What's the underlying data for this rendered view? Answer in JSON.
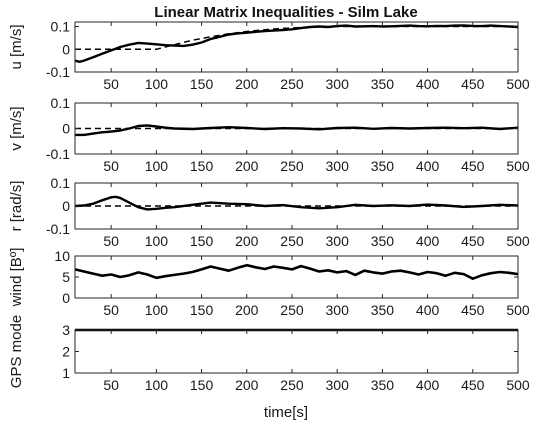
{
  "chart_data": {
    "type": "line",
    "title": "Linear Matrix Inequalities - Silm Lake",
    "xlabel": "time[s]",
    "x_tick_labels": [
      "50",
      "100",
      "150",
      "200",
      "250",
      "300",
      "350",
      "400",
      "450",
      "500"
    ],
    "colors": {
      "measured": "#000000",
      "reference": "#000000",
      "axes": "#262626"
    },
    "panels": [
      {
        "ylabel": "u [m/s]",
        "xlim": [
          10,
          500
        ],
        "ylim": [
          -0.1,
          0.12
        ],
        "yticks": [
          -0.1,
          0,
          0.1
        ],
        "ytick_labels": [
          "-0.1",
          "0",
          "0.1"
        ],
        "grid": false,
        "series": [
          {
            "style": "dashed",
            "x": [
              10,
              100,
              120,
              140,
              160,
              180,
              200,
              220,
              240,
              260,
              280,
              300,
              320,
              340,
              360,
              380,
              400,
              420,
              440,
              460,
              480,
              500
            ],
            "y": [
              0,
              0,
              0.02,
              0.04,
              0.055,
              0.068,
              0.078,
              0.086,
              0.092,
              0.096,
              0.099,
              0.1,
              0.1,
              0.1,
              0.1,
              0.1,
              0.1,
              0.1,
              0.1,
              0.1,
              0.1,
              0.1
            ]
          },
          {
            "style": "solid",
            "x": [
              10,
              15,
              20,
              30,
              40,
              50,
              60,
              70,
              80,
              90,
              100,
              110,
              120,
              130,
              140,
              150,
              160,
              170,
              180,
              190,
              200,
              210,
              220,
              230,
              240,
              250,
              260,
              270,
              280,
              290,
              300,
              310,
              320,
              330,
              340,
              350,
              360,
              370,
              380,
              390,
              400,
              410,
              420,
              430,
              440,
              450,
              460,
              470,
              480,
              490,
              500
            ],
            "y": [
              -0.05,
              -0.055,
              -0.05,
              -0.035,
              -0.02,
              -0.005,
              0.01,
              0.02,
              0.028,
              0.025,
              0.022,
              0.018,
              0.016,
              0.015,
              0.02,
              0.03,
              0.045,
              0.055,
              0.065,
              0.07,
              0.073,
              0.077,
              0.08,
              0.082,
              0.085,
              0.088,
              0.093,
              0.098,
              0.1,
              0.098,
              0.102,
              0.104,
              0.1,
              0.101,
              0.102,
              0.1,
              0.101,
              0.103,
              0.104,
              0.102,
              0.101,
              0.103,
              0.102,
              0.104,
              0.105,
              0.103,
              0.102,
              0.104,
              0.102,
              0.1,
              0.098
            ]
          }
        ]
      },
      {
        "ylabel": "v [m/s]",
        "xlim": [
          10,
          500
        ],
        "ylim": [
          -0.1,
          0.1
        ],
        "yticks": [
          -0.1,
          0,
          0.1
        ],
        "ytick_labels": [
          "-0.1",
          "0",
          "0.1"
        ],
        "grid": false,
        "series": [
          {
            "style": "dashed",
            "x": [
              10,
              500
            ],
            "y": [
              0,
              0
            ]
          },
          {
            "style": "solid",
            "x": [
              10,
              20,
              30,
              40,
              50,
              60,
              70,
              80,
              90,
              100,
              110,
              120,
              140,
              160,
              180,
              200,
              220,
              240,
              260,
              280,
              300,
              320,
              340,
              360,
              380,
              400,
              420,
              440,
              460,
              480,
              500
            ],
            "y": [
              -0.025,
              -0.025,
              -0.02,
              -0.015,
              -0.012,
              -0.008,
              0,
              0.01,
              0.012,
              0.008,
              0.003,
              0,
              -0.002,
              0.002,
              0.005,
              0.002,
              -0.002,
              0.001,
              0,
              -0.003,
              0.002,
              0.003,
              -0.001,
              0.002,
              0,
              0.002,
              0.003,
              0.001,
              0.003,
              -0.002,
              0.003
            ]
          }
        ]
      },
      {
        "ylabel": "r [rad/s]",
        "xlim": [
          10,
          500
        ],
        "ylim": [
          -0.1,
          0.1
        ],
        "yticks": [
          -0.1,
          0,
          0.1
        ],
        "ytick_labels": [
          "-0.1",
          "0",
          "0.1"
        ],
        "grid": false,
        "series": [
          {
            "style": "dashed",
            "x": [
              10,
              100,
              500
            ],
            "y": [
              0,
              0,
              0
            ]
          },
          {
            "style": "solid",
            "x": [
              10,
              20,
              30,
              40,
              50,
              55,
              60,
              70,
              80,
              90,
              100,
              110,
              120,
              140,
              160,
              180,
              200,
              220,
              240,
              260,
              280,
              300,
              320,
              340,
              360,
              380,
              400,
              420,
              440,
              460,
              480,
              500
            ],
            "y": [
              0,
              0.002,
              0.01,
              0.025,
              0.038,
              0.04,
              0.035,
              0.015,
              -0.005,
              -0.015,
              -0.012,
              -0.008,
              -0.005,
              0.005,
              0.015,
              0.01,
              0.008,
              0,
              0.004,
              -0.005,
              -0.01,
              -0.005,
              0.005,
              0,
              0.003,
              0,
              0.006,
              0.002,
              -0.004,
              0,
              0.005,
              0.002
            ]
          }
        ]
      },
      {
        "ylabel": "wind [Bº]",
        "xlim": [
          10,
          500
        ],
        "ylim": [
          0,
          10
        ],
        "yticks": [
          0,
          5,
          10
        ],
        "ytick_labels": [
          "0",
          "5",
          "10"
        ],
        "grid": false,
        "series": [
          {
            "style": "solid",
            "x": [
              10,
              20,
              30,
              40,
              50,
              60,
              70,
              80,
              90,
              100,
              110,
              120,
              130,
              140,
              150,
              160,
              170,
              180,
              190,
              200,
              210,
              220,
              230,
              240,
              250,
              260,
              270,
              280,
              290,
              300,
              310,
              320,
              330,
              340,
              350,
              360,
              370,
              380,
              390,
              400,
              410,
              420,
              430,
              440,
              450,
              460,
              470,
              480,
              490,
              500
            ],
            "y": [
              6.8,
              6.3,
              5.8,
              5.3,
              5.6,
              5,
              5.4,
              6.1,
              5.6,
              4.8,
              5.2,
              5.5,
              5.8,
              6.2,
              6.8,
              7.5,
              7,
              6.5,
              7.2,
              7.8,
              7.3,
              6.9,
              7.5,
              7.2,
              6.8,
              7.6,
              7,
              6.3,
              6.6,
              6.1,
              6.4,
              5.5,
              6.5,
              6.1,
              5.8,
              6.3,
              6.5,
              6.1,
              5.6,
              6.2,
              5.9,
              5.3,
              6,
              5.7,
              4.6,
              5.4,
              5.9,
              6.2,
              6,
              5.7
            ]
          }
        ]
      },
      {
        "ylabel": "GPS mode",
        "xlim": [
          10,
          500
        ],
        "ylim": [
          1,
          3
        ],
        "yticks": [
          1,
          2,
          3
        ],
        "ytick_labels": [
          "1",
          "2",
          "3"
        ],
        "grid": false,
        "series": [
          {
            "style": "solid",
            "x": [
              10,
              500
            ],
            "y": [
              3,
              3
            ]
          }
        ]
      }
    ]
  }
}
